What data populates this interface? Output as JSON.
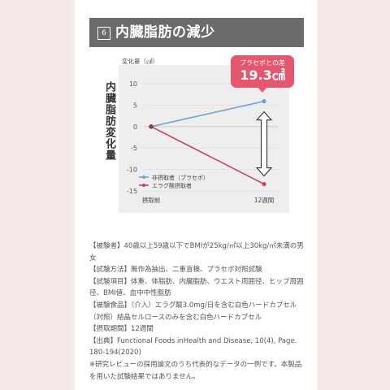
{
  "header": {
    "number": "6",
    "title": "内臓脂肪の減少"
  },
  "chart_data": {
    "type": "line",
    "ylabel": "変化量（㎠）",
    "y_title_vertical": "内臓脂肪変化量",
    "ylim": [
      -15,
      10
    ],
    "yticks": [
      10,
      5,
      0,
      -5,
      -10,
      -15
    ],
    "categories": [
      "摂取前",
      "12週間"
    ],
    "grid": true,
    "legend_position": "bottom-left",
    "series": [
      {
        "name": "非摂取者（プラセボ）",
        "values": [
          0,
          5.9
        ],
        "color": "#6fa3d3"
      },
      {
        "name": "エラグ酸摂取者",
        "values": [
          0,
          -13.4
        ],
        "color": "#c8435b"
      }
    ],
    "annotation": {
      "label": "プラセボとの差",
      "value": "19.3㎠",
      "color": "#e6566f"
    }
  },
  "info_lines": [
    "【被験者】40歳以上59歳以下でBMIが25kg/㎡以上30kg/㎡未満の男女",
    "【試験方法】無作為抽出、二重盲検、プラセボ対照試験",
    "【試験項目】体重、体脂肪、内臓脂肪、ウエスト周囲径、ヒップ周囲径、BMI値、血中中性脂肪",
    "【被験食品】（介入）エラグ酸3.0mg/日を含む白色ハードカプセル（対照）結晶セルロースのみを含む白色ハードカプセル",
    "【摂取期間】12週間",
    "【出典】Functional Foods inHealth and Disease, 10(4), Page. 180-194(2020)",
    "※研究レビューの採用論文のうち代表的なデータの一例です。本製品を用いた試験結果ではありません。"
  ]
}
